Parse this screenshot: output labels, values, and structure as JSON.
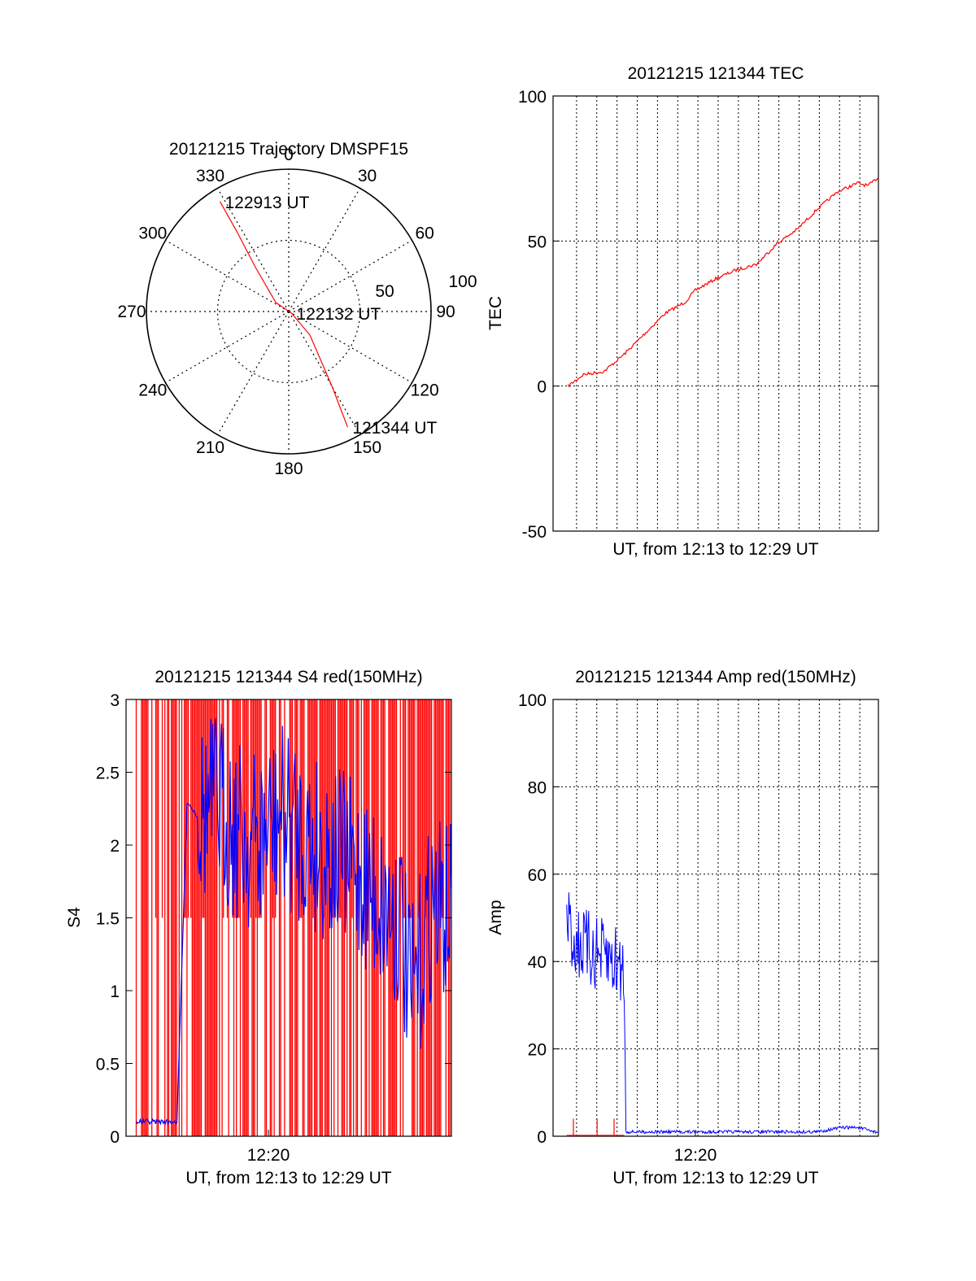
{
  "colors": {
    "red": "#ff0000",
    "blue": "#0000ff",
    "axis": "#000000",
    "grid": "#000000"
  },
  "chart_data": [
    {
      "id": "trajectory",
      "type": "polar",
      "title": "20121215 Trajectory DMSPF15",
      "azimuth_labels": [
        "0",
        "30",
        "60",
        "90",
        "120",
        "150",
        "180",
        "210",
        "240",
        "270",
        "300",
        "330"
      ],
      "radial_labels": [
        "50",
        "100"
      ],
      "series": [
        {
          "color": "red",
          "points": [
            {
              "az": 328,
              "el": 8
            },
            {
              "az": 327,
              "el": 30
            },
            {
              "az": 323,
              "el": 55
            },
            {
              "az": 305,
              "el": 80
            },
            {
              "az": 120,
              "el": 88
            },
            {
              "az": 138,
              "el": 70
            },
            {
              "az": 150,
              "el": 35
            },
            {
              "az": 153,
              "el": 8
            }
          ]
        }
      ],
      "annotations": [
        {
          "text": "122913 UT",
          "az": 328,
          "el": 8
        },
        {
          "text": "122132 UT",
          "az": 120,
          "el": 88
        },
        {
          "text": "121344 UT",
          "az": 153,
          "el": 8
        }
      ]
    },
    {
      "id": "tec",
      "type": "line",
      "title": "20121215 121344 TEC",
      "xlabel": "UT, from 12:13 to 12:29 UT",
      "ylabel": "TEC",
      "xlim": [
        "12:13",
        "12:29"
      ],
      "ylim": [
        -50,
        100
      ],
      "yticks": [
        "-50",
        "0",
        "50",
        "100"
      ],
      "grid": true,
      "series": [
        {
          "color": "red",
          "x": [
            "12:13:44",
            "12:14:30",
            "12:15:30",
            "12:16:30",
            "12:17:30",
            "12:18:30",
            "12:19:00",
            "12:19:30",
            "12:20:00",
            "12:21:00",
            "12:22:00",
            "12:23:00",
            "12:24:00",
            "12:25:00",
            "12:26:00",
            "12:27:00",
            "12:28:00",
            "12:28:30",
            "12:29:00"
          ],
          "y": [
            0,
            4,
            5,
            11,
            18,
            25,
            27,
            29,
            33,
            37,
            40,
            42,
            49,
            54,
            61,
            67,
            70,
            69,
            72
          ]
        }
      ]
    },
    {
      "id": "s4",
      "type": "line",
      "title": "20121215 121344 S4 red(150MHz)",
      "xlabel": "UT, from 12:13 to 12:29 UT",
      "ylabel": "S4",
      "xlim": [
        "12:13",
        "12:29"
      ],
      "ylim": [
        0,
        3
      ],
      "yticks": [
        "0",
        "0.5",
        "1",
        "1.5",
        "2",
        "2.5",
        "3"
      ],
      "xticks": [
        "12:20"
      ],
      "grid": false,
      "series": [
        {
          "color": "red",
          "x": [
            "12:13:30",
            "12:14:00",
            "12:15:00",
            "12:16:00",
            "12:17:00",
            "12:18:00",
            "12:19:00",
            "12:20:00",
            "12:21:00",
            "12:22:00",
            "12:23:00",
            "12:24:00",
            "12:25:00",
            "12:26:00",
            "12:27:00",
            "12:28:00",
            "12:29:00"
          ],
          "y": [
            3,
            3,
            3,
            3,
            3,
            3,
            3,
            3,
            3,
            3,
            3,
            3,
            3,
            3,
            3,
            3,
            3
          ]
        },
        {
          "color": "blue",
          "x": [
            "12:13:30",
            "12:14:30",
            "12:15:30",
            "12:16:00",
            "12:16:30",
            "12:17:30",
            "12:18:30",
            "12:19:30",
            "12:20:30",
            "12:21:30",
            "12:22:30",
            "12:23:30",
            "12:24:30",
            "12:25:30",
            "12:26:30",
            "12:27:00",
            "12:27:30",
            "12:28:00",
            "12:29:00"
          ],
          "y": [
            0.1,
            0.1,
            0.1,
            2.3,
            2.2,
            2.3,
            2.1,
            2.0,
            2.2,
            2.1,
            2.0,
            1.9,
            1.8,
            1.6,
            1.5,
            0.9,
            1.2,
            1.6,
            1.5
          ]
        }
      ]
    },
    {
      "id": "amp",
      "type": "line",
      "title": "20121215 121344 Amp red(150MHz)",
      "xlabel": "UT, from 12:13 to 12:29 UT",
      "ylabel": "Amp",
      "xlim": [
        "12:13",
        "12:29"
      ],
      "ylim": [
        0,
        100
      ],
      "yticks": [
        "0",
        "20",
        "40",
        "60",
        "80",
        "100"
      ],
      "xticks": [
        "12:20"
      ],
      "grid": true,
      "series": [
        {
          "color": "blue",
          "x": [
            "12:13:40",
            "12:14:00",
            "12:15:00",
            "12:16:00",
            "12:16:30",
            "12:16:35",
            "12:18:00",
            "12:20:00",
            "12:22:00",
            "12:24:00",
            "12:26:00",
            "12:27:10",
            "12:28:00",
            "12:28:50",
            "12:29:00"
          ],
          "y": [
            50,
            45,
            42,
            40,
            38,
            1,
            1,
            1,
            1,
            1,
            1,
            2,
            2,
            1,
            1
          ]
        },
        {
          "color": "red",
          "x": [
            "12:13:40",
            "12:14:00",
            "12:15:00",
            "12:16:00",
            "12:16:30"
          ],
          "y": [
            0,
            0,
            0,
            0,
            0
          ]
        }
      ]
    }
  ]
}
